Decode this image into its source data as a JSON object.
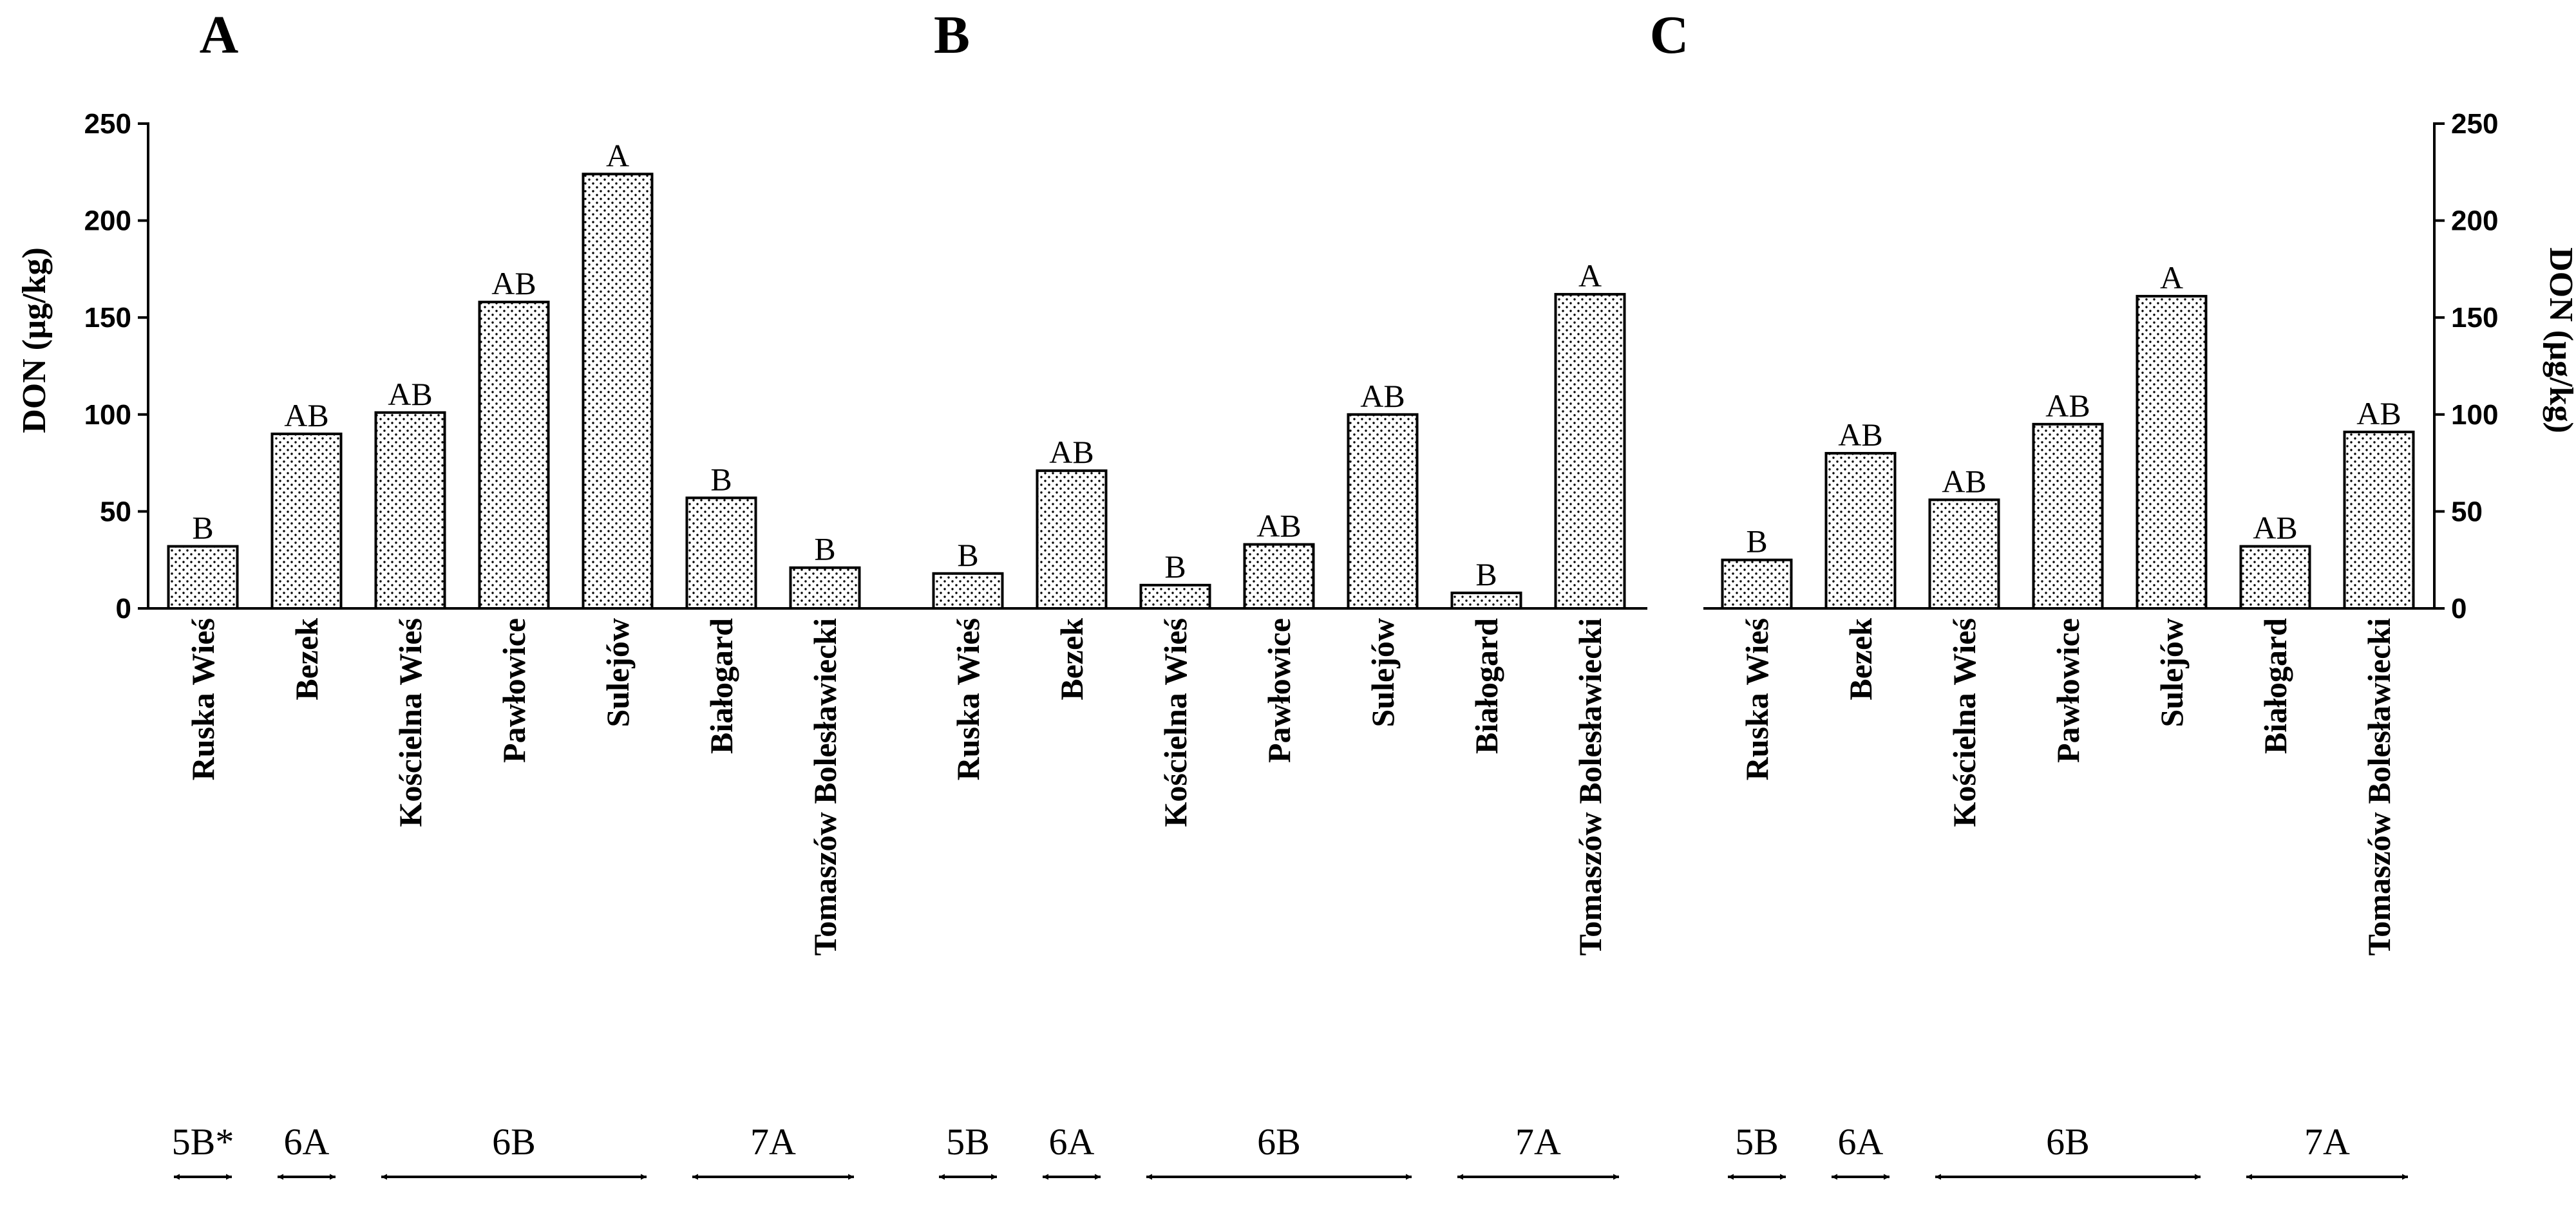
{
  "figure": {
    "y_title": "DON (µg/kg)",
    "panels_letters": [
      "A",
      "B",
      "C"
    ]
  },
  "chart_data": [
    {
      "type": "bar",
      "title": "A",
      "xlabel": "",
      "ylabel": "DON (µg/kg)",
      "ylim": [
        0,
        250
      ],
      "yticks": [
        0,
        50,
        100,
        150,
        200,
        250
      ],
      "y_axis_side": "left",
      "categories": [
        "Ruska Wieś",
        "Bezek",
        "Kościelna Wieś",
        "Pawłowice",
        "Sulejów",
        "Białogard",
        "Tomaszów Bolesławiecki"
      ],
      "values": [
        32,
        90,
        101,
        158,
        224,
        57,
        21
      ],
      "significance": [
        "B",
        "AB",
        "AB",
        "AB",
        "A",
        "B",
        "B"
      ],
      "zones": [
        {
          "label": "5B*",
          "start": 0,
          "end": 0
        },
        {
          "label": "6A",
          "start": 1,
          "end": 1
        },
        {
          "label": "6B",
          "start": 2,
          "end": 4
        },
        {
          "label": "7A",
          "start": 5,
          "end": 6
        }
      ]
    },
    {
      "type": "bar",
      "title": "B",
      "xlabel": "",
      "ylabel": "",
      "ylim": [
        0,
        250
      ],
      "yticks": [],
      "y_axis_side": "none",
      "categories": [
        "Ruska Wieś",
        "Bezek",
        "Kościelna Wieś",
        "Pawłowice",
        "Sulejów",
        "Białogard",
        "Tomaszów Bolesławiecki"
      ],
      "values": [
        18,
        71,
        12,
        33,
        100,
        8,
        162
      ],
      "significance": [
        "B",
        "AB",
        "B",
        "AB",
        "AB",
        "B",
        "A"
      ],
      "zones": [
        {
          "label": "5B",
          "start": 0,
          "end": 0
        },
        {
          "label": "6A",
          "start": 1,
          "end": 1
        },
        {
          "label": "6B",
          "start": 2,
          "end": 4
        },
        {
          "label": "7A",
          "start": 5,
          "end": 6
        }
      ]
    },
    {
      "type": "bar",
      "title": "C",
      "xlabel": "",
      "ylabel": "DON (µg/kg)",
      "ylim": [
        0,
        250
      ],
      "yticks": [
        0,
        50,
        100,
        150,
        200,
        250
      ],
      "y_axis_side": "right",
      "categories": [
        "Ruska Wieś",
        "Bezek",
        "Kościelna Wieś",
        "Pawłowice",
        "Sulejów",
        "Białogard",
        "Tomaszów Bolesławiecki"
      ],
      "values": [
        25,
        80,
        56,
        95,
        161,
        32,
        91
      ],
      "significance": [
        "B",
        "AB",
        "AB",
        "AB",
        "A",
        "AB",
        "AB"
      ],
      "zones": [
        {
          "label": "5B",
          "start": 0,
          "end": 0
        },
        {
          "label": "6A",
          "start": 1,
          "end": 1
        },
        {
          "label": "6B",
          "start": 2,
          "end": 4
        },
        {
          "label": "7A",
          "start": 5,
          "end": 6
        }
      ]
    }
  ]
}
